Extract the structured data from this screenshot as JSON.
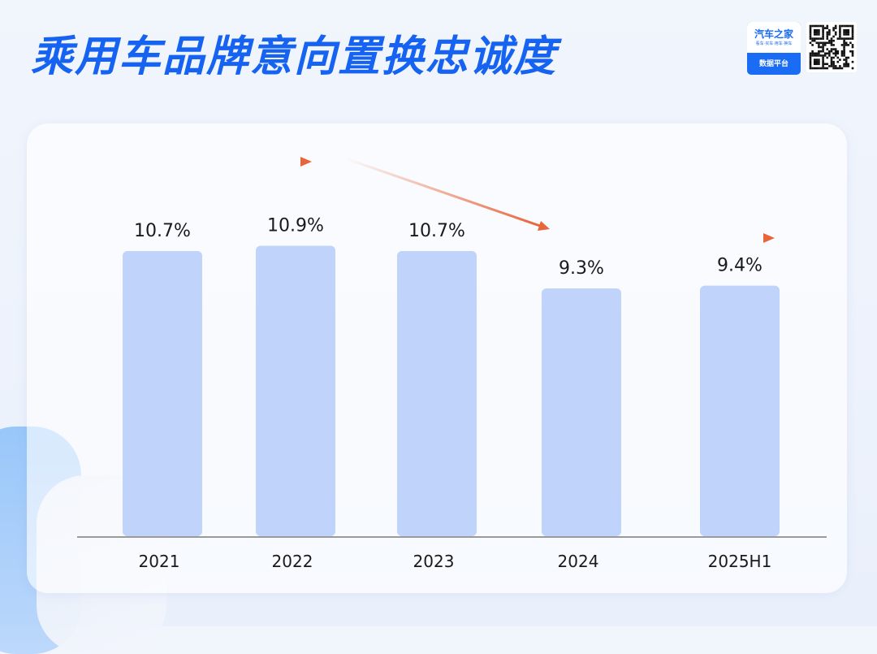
{
  "title": "乘用车品牌意向置换忠诚度",
  "logo": {
    "brand": "汽车之家",
    "tagline": "看车·买车·用车·换车",
    "platform": "数据平台",
    "qr_icon": "qr-code-icon"
  },
  "colors": {
    "title": "#1663f2",
    "bar": "#c0d3fb",
    "arrow": "#e8643a",
    "axis": "#9a9a9a"
  },
  "chart_data": {
    "type": "bar",
    "categories": [
      "2021",
      "2022",
      "2023",
      "2024",
      "2025H1"
    ],
    "values": [
      10.7,
      10.9,
      10.7,
      9.3,
      9.4
    ],
    "value_labels": [
      "10.7%",
      "10.9%",
      "10.7%",
      "9.3%",
      "9.4%"
    ],
    "title": "乘用车品牌意向置换忠诚度",
    "xlabel": "",
    "ylabel": "",
    "unit": "%",
    "grid": false,
    "legend": "none",
    "annotations": [
      "trend-arrow-flat",
      "trend-arrow-down",
      "trend-arrow-flat"
    ]
  }
}
